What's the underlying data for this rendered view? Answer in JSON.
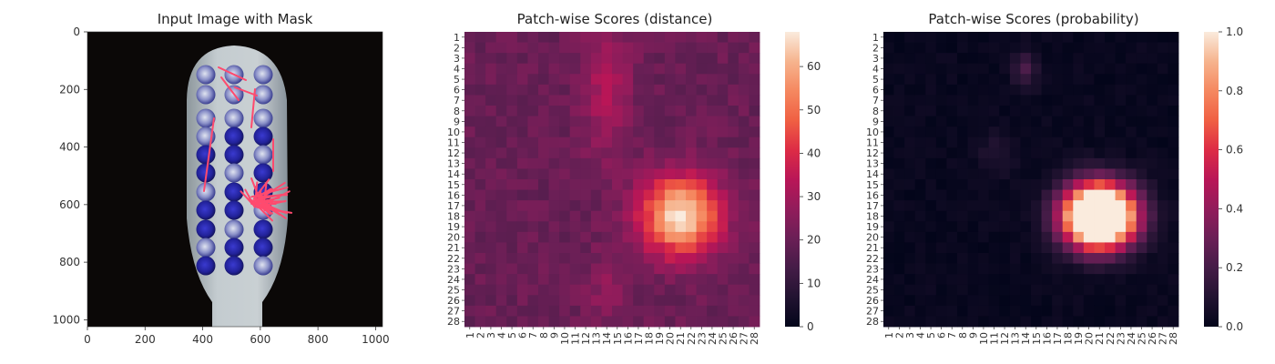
{
  "chart_data": [
    {
      "type": "image",
      "title": "Input Image with Mask",
      "x_ticks": [
        "0",
        "200",
        "400",
        "600",
        "800",
        "1000"
      ],
      "y_ticks": [
        "0",
        "200",
        "400",
        "600",
        "800",
        "1000"
      ],
      "xlim": [
        0,
        1024
      ],
      "ylim": [
        1024,
        0
      ],
      "image_description_colors": {
        "background": "#0b0807",
        "handle": "#b8c2c7",
        "bristle": "#2a2aa0",
        "mask": "#ff4a6e"
      }
    },
    {
      "type": "heatmap",
      "title": "Patch-wise Scores (distance)",
      "rows": 28,
      "cols": 28,
      "row_labels": [
        "1",
        "2",
        "3",
        "4",
        "5",
        "6",
        "7",
        "8",
        "9",
        "10",
        "11",
        "12",
        "13",
        "14",
        "15",
        "16",
        "17",
        "18",
        "19",
        "20",
        "21",
        "22",
        "23",
        "24",
        "25",
        "26",
        "27",
        "28"
      ],
      "col_labels": [
        "1",
        "2",
        "3",
        "4",
        "5",
        "6",
        "7",
        "8",
        "9",
        "10",
        "11",
        "12",
        "13",
        "14",
        "15",
        "16",
        "17",
        "18",
        "19",
        "20",
        "21",
        "22",
        "23",
        "24",
        "25",
        "26",
        "27",
        "28"
      ],
      "colorbar_ticks": [
        "0",
        "10",
        "20",
        "30",
        "40",
        "50",
        "60"
      ],
      "value_range": [
        0,
        68
      ],
      "hotspot": {
        "row": 18,
        "col": 21,
        "peak": 68
      },
      "secondary_hotspot": {
        "row": 6,
        "col": 14,
        "peak": 32
      },
      "background_level": 20
    },
    {
      "type": "heatmap",
      "title": "Patch-wise Scores (probability)",
      "rows": 28,
      "cols": 28,
      "row_labels": [
        "1",
        "2",
        "3",
        "4",
        "5",
        "6",
        "7",
        "8",
        "9",
        "10",
        "11",
        "12",
        "13",
        "14",
        "15",
        "16",
        "17",
        "18",
        "19",
        "20",
        "21",
        "22",
        "23",
        "24",
        "25",
        "26",
        "27",
        "28"
      ],
      "col_labels": [
        "1",
        "2",
        "3",
        "4",
        "5",
        "6",
        "7",
        "8",
        "9",
        "10",
        "11",
        "12",
        "13",
        "14",
        "15",
        "16",
        "17",
        "18",
        "19",
        "20",
        "21",
        "22",
        "23",
        "24",
        "25",
        "26",
        "27",
        "28"
      ],
      "colorbar_ticks": [
        "0.0",
        "0.2",
        "0.4",
        "0.6",
        "0.8",
        "1.0"
      ],
      "value_range": [
        0,
        1
      ],
      "hotspot": {
        "row": 18,
        "col": 21,
        "peak": 1.0
      },
      "secondary_hotspot": {
        "row": 4,
        "col": 14,
        "peak": 0.2
      },
      "background_level": 0.0
    }
  ]
}
